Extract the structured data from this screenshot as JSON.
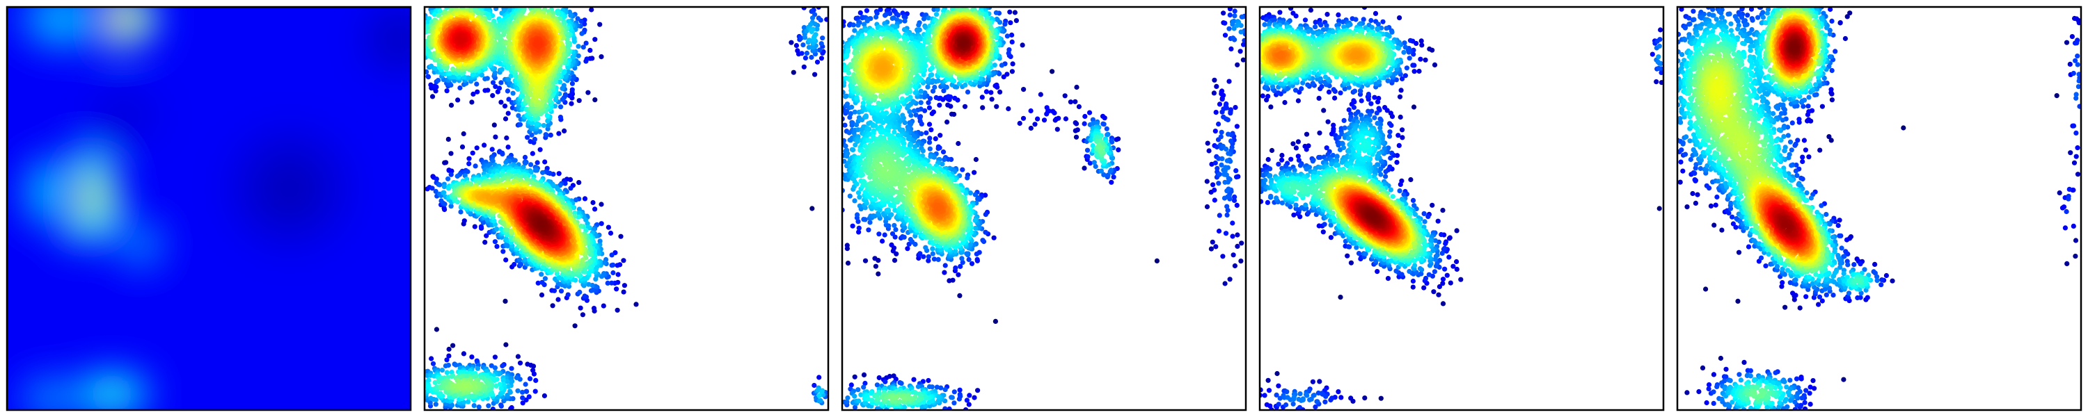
{
  "figure": {
    "background": "#ffffff",
    "frame_color": "#000000",
    "colormap": [
      "#00007f",
      "#0000ff",
      "#007fff",
      "#00ffff",
      "#7fff7f",
      "#ffff00",
      "#ff7f00",
      "#ff0000",
      "#7f0000"
    ]
  },
  "chart_data": [
    {
      "type": "heatmap",
      "style": "smooth-density",
      "title": "",
      "xlabel": "",
      "ylabel": "",
      "xlim": [
        0,
        1
      ],
      "ylim": [
        0,
        1
      ],
      "grid": false,
      "ticks": false,
      "legend": "none",
      "background_level": 0.12,
      "blobs": [
        {
          "x": 0.27,
          "y": 0.97,
          "sx": 0.05,
          "sy": 0.035,
          "w": 0.88
        },
        {
          "x": 0.14,
          "y": 0.97,
          "sx": 0.06,
          "sy": 0.04,
          "w": 0.35
        },
        {
          "x": 0.19,
          "y": 0.53,
          "sx": 0.045,
          "sy": 0.06,
          "w": 0.72
        },
        {
          "x": 0.11,
          "y": 0.54,
          "sx": 0.04,
          "sy": 0.05,
          "w": 0.35
        },
        {
          "x": 0.33,
          "y": 0.41,
          "sx": 0.035,
          "sy": 0.035,
          "w": 0.28
        },
        {
          "x": 0.12,
          "y": 0.03,
          "sx": 0.05,
          "sy": 0.03,
          "w": 0.3
        },
        {
          "x": 0.26,
          "y": 0.04,
          "sx": 0.05,
          "sy": 0.03,
          "w": 0.45
        },
        {
          "x": 0.29,
          "y": 0.73,
          "sx": 0.05,
          "sy": 0.04,
          "w": 0.08
        },
        {
          "x": 0.7,
          "y": 0.55,
          "sx": 0.08,
          "sy": 0.08,
          "w": 0.05
        },
        {
          "x": 0.97,
          "y": 0.92,
          "sx": 0.05,
          "sy": 0.05,
          "w": 0.05
        }
      ]
    },
    {
      "type": "scatter",
      "style": "density-colored",
      "title": "",
      "xlabel": "",
      "ylabel": "",
      "xlim": [
        0,
        1
      ],
      "ylim": [
        0,
        1
      ],
      "grid": false,
      "ticks": false,
      "legend": "none",
      "seed": 11,
      "clusters": [
        {
          "x": 0.09,
          "y": 0.92,
          "sx": 0.05,
          "sy": 0.05,
          "rho": 0,
          "n": 1400
        },
        {
          "x": 0.28,
          "y": 0.91,
          "sx": 0.05,
          "sy": 0.06,
          "rho": 0,
          "n": 1400
        },
        {
          "x": 0.28,
          "y": 0.77,
          "sx": 0.03,
          "sy": 0.05,
          "rho": 0,
          "n": 300
        },
        {
          "x": 0.29,
          "y": 0.46,
          "sx": 0.07,
          "sy": 0.07,
          "rho": -0.6,
          "n": 2600
        },
        {
          "x": 0.13,
          "y": 0.53,
          "sx": 0.05,
          "sy": 0.025,
          "rho": -0.3,
          "n": 350
        },
        {
          "x": 0.1,
          "y": 0.06,
          "sx": 0.08,
          "sy": 0.03,
          "rho": 0,
          "n": 500
        },
        {
          "x": 0.96,
          "y": 0.93,
          "sx": 0.02,
          "sy": 0.04,
          "rho": 0,
          "n": 70
        },
        {
          "x": 0.98,
          "y": 0.04,
          "sx": 0.01,
          "sy": 0.02,
          "rho": 0,
          "n": 20
        }
      ],
      "outliers": [
        [
          0.96,
          0.5
        ],
        [
          0.03,
          0.2
        ],
        [
          0.07,
          0.16
        ],
        [
          0.2,
          0.27
        ]
      ]
    },
    {
      "type": "scatter",
      "style": "density-colored",
      "title": "",
      "xlabel": "",
      "ylabel": "",
      "xlim": [
        0,
        1
      ],
      "ylim": [
        0,
        1
      ],
      "grid": false,
      "ticks": false,
      "legend": "none",
      "seed": 23,
      "clusters": [
        {
          "x": 0.1,
          "y": 0.85,
          "sx": 0.06,
          "sy": 0.06,
          "rho": 0,
          "n": 1300
        },
        {
          "x": 0.3,
          "y": 0.91,
          "sx": 0.045,
          "sy": 0.05,
          "rho": 0,
          "n": 1500
        },
        {
          "x": 0.1,
          "y": 0.6,
          "sx": 0.06,
          "sy": 0.08,
          "rho": 0,
          "n": 900
        },
        {
          "x": 0.24,
          "y": 0.5,
          "sx": 0.05,
          "sy": 0.06,
          "rho": -0.3,
          "n": 1200
        },
        {
          "x": 0.64,
          "y": 0.65,
          "sx": 0.02,
          "sy": 0.04,
          "rho": -0.4,
          "n": 130
        },
        {
          "x": 0.5,
          "y": 0.74,
          "sx": 0.06,
          "sy": 0.03,
          "rho": 0,
          "n": 30
        },
        {
          "x": 0.95,
          "y": 0.6,
          "sx": 0.02,
          "sy": 0.12,
          "rho": 0,
          "n": 120
        },
        {
          "x": 0.14,
          "y": 0.03,
          "sx": 0.08,
          "sy": 0.02,
          "rho": 0,
          "n": 300
        },
        {
          "x": 0.98,
          "y": 0.95,
          "sx": 0.02,
          "sy": 0.03,
          "rho": 0,
          "n": 40
        }
      ],
      "outliers": [
        [
          0.52,
          0.84
        ],
        [
          0.6,
          0.6
        ],
        [
          0.78,
          0.37
        ],
        [
          0.38,
          0.22
        ]
      ]
    },
    {
      "type": "scatter",
      "style": "density-colored",
      "title": "",
      "xlabel": "",
      "ylabel": "",
      "xlim": [
        0,
        1
      ],
      "ylim": [
        0,
        1
      ],
      "grid": false,
      "ticks": false,
      "legend": "none",
      "seed": 37,
      "clusters": [
        {
          "x": 0.05,
          "y": 0.88,
          "sx": 0.05,
          "sy": 0.04,
          "rho": 0,
          "n": 1000
        },
        {
          "x": 0.24,
          "y": 0.88,
          "sx": 0.06,
          "sy": 0.04,
          "rho": 0,
          "n": 1100
        },
        {
          "x": 0.26,
          "y": 0.66,
          "sx": 0.04,
          "sy": 0.05,
          "rho": 0,
          "n": 300
        },
        {
          "x": 0.28,
          "y": 0.48,
          "sx": 0.07,
          "sy": 0.06,
          "rho": -0.65,
          "n": 2600
        },
        {
          "x": 0.08,
          "y": 0.55,
          "sx": 0.05,
          "sy": 0.03,
          "rho": -0.3,
          "n": 250
        },
        {
          "x": 0.1,
          "y": 0.03,
          "sx": 0.06,
          "sy": 0.02,
          "rho": 0,
          "n": 80
        },
        {
          "x": 0.99,
          "y": 0.88,
          "sx": 0.01,
          "sy": 0.03,
          "rho": 0,
          "n": 25
        }
      ],
      "outliers": [
        [
          0.26,
          0.03
        ],
        [
          0.99,
          0.5
        ],
        [
          0.2,
          0.28
        ]
      ]
    },
    {
      "type": "scatter",
      "style": "density-colored",
      "title": "",
      "xlabel": "",
      "ylabel": "",
      "xlim": [
        0,
        1
      ],
      "ylim": [
        0,
        1
      ],
      "grid": false,
      "ticks": false,
      "legend": "none",
      "seed": 53,
      "clusters": [
        {
          "x": 0.1,
          "y": 0.8,
          "sx": 0.06,
          "sy": 0.1,
          "rho": 0,
          "n": 1500
        },
        {
          "x": 0.29,
          "y": 0.9,
          "sx": 0.04,
          "sy": 0.06,
          "rho": 0,
          "n": 1500
        },
        {
          "x": 0.18,
          "y": 0.65,
          "sx": 0.06,
          "sy": 0.06,
          "rho": 0,
          "n": 600
        },
        {
          "x": 0.27,
          "y": 0.46,
          "sx": 0.06,
          "sy": 0.07,
          "rho": -0.6,
          "n": 2000
        },
        {
          "x": 0.45,
          "y": 0.32,
          "sx": 0.03,
          "sy": 0.02,
          "rho": 0,
          "n": 80
        },
        {
          "x": 0.2,
          "y": 0.04,
          "sx": 0.06,
          "sy": 0.03,
          "rho": 0,
          "n": 300
        },
        {
          "x": 0.99,
          "y": 0.8,
          "sx": 0.01,
          "sy": 0.1,
          "rho": 0,
          "n": 40
        },
        {
          "x": 0.97,
          "y": 0.5,
          "sx": 0.01,
          "sy": 0.05,
          "rho": 0,
          "n": 15
        }
      ],
      "outliers": [
        [
          0.56,
          0.7
        ],
        [
          0.94,
          0.78
        ],
        [
          0.07,
          0.3
        ],
        [
          0.15,
          0.27
        ]
      ]
    }
  ]
}
